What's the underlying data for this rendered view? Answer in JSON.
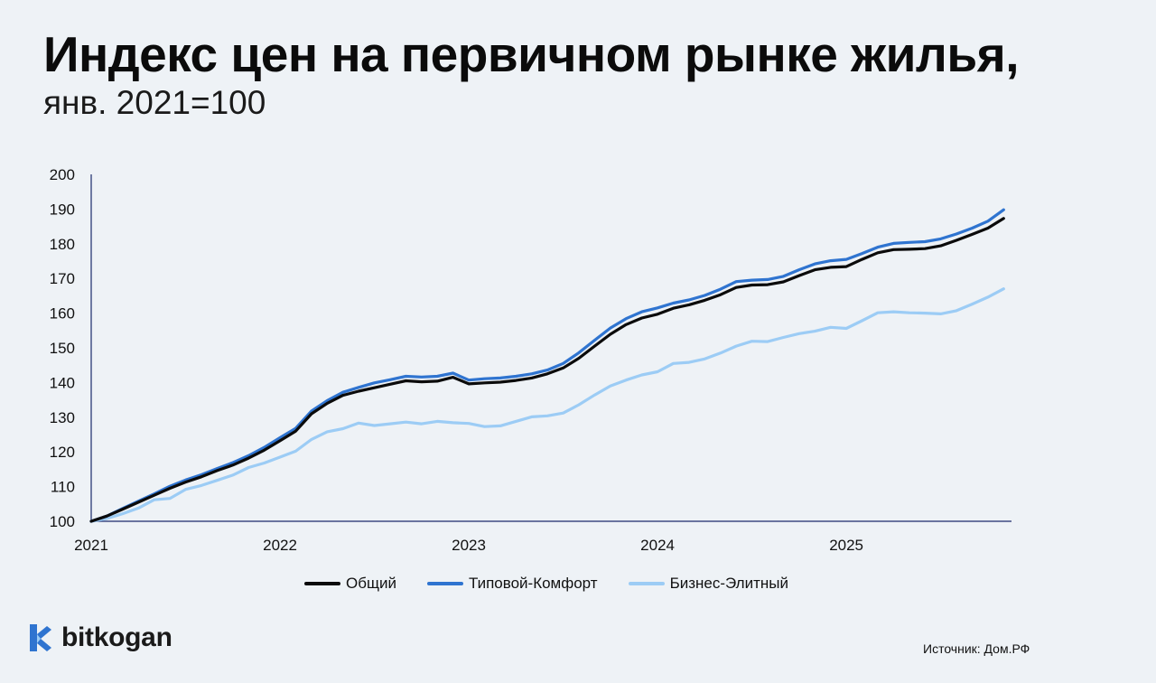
{
  "header": {
    "title": "Индекс цен на первичном рынке жилья,",
    "subtitle": "янв. 2021=100"
  },
  "legend": {
    "items": [
      {
        "label": "Общий",
        "color": "#0b0b0b"
      },
      {
        "label": "Типовой-Комфорт",
        "color": "#2f74d0"
      },
      {
        "label": "Бизнес-Элитный",
        "color": "#9cccf5"
      }
    ]
  },
  "footer": {
    "brand": "bitkogan",
    "source": "Источник: Дом.РФ"
  },
  "chart_data": {
    "type": "line",
    "title": "Индекс цен на первичном рынке жилья, янв. 2021=100",
    "xlabel": "",
    "ylabel": "",
    "ylim": [
      100,
      200
    ],
    "yticks": [
      100,
      110,
      120,
      130,
      140,
      150,
      160,
      170,
      180,
      190,
      200
    ],
    "xlim": [
      2021.0,
      2025.875
    ],
    "xticks": [
      "2021",
      "2022",
      "2023",
      "2024",
      "2025"
    ],
    "x_start": "2021-01",
    "x_step_months": 1,
    "series": [
      {
        "name": "Общий",
        "color": "#0b0b0b",
        "values": [
          100,
          101.5,
          103.5,
          105.5,
          107.5,
          109.5,
          111.3,
          112.8,
          114.6,
          116.2,
          118.2,
          120.5,
          123.2,
          126,
          131,
          134,
          136.3,
          137.5,
          138.5,
          139.5,
          140.5,
          140.2,
          140.4,
          141.5,
          139.6,
          139.9,
          140.1,
          140.6,
          141.3,
          142.5,
          144.2,
          147,
          150.5,
          153.9,
          156.7,
          158.6,
          159.7,
          161.4,
          162.4,
          163.7,
          165.3,
          167.4,
          168.1,
          168.2,
          169,
          170.8,
          172.5,
          173.2,
          173.4,
          175.5,
          177.4,
          178.3,
          178.4,
          178.6,
          179.4,
          181,
          182.7,
          184.5,
          187.3
        ]
      },
      {
        "name": "Типовой-Комфорт",
        "color": "#2f74d0",
        "values": [
          100,
          101.5,
          103.7,
          105.8,
          107.9,
          110.1,
          111.9,
          113.4,
          115.2,
          116.9,
          118.9,
          121.3,
          124.1,
          126.8,
          131.8,
          134.8,
          137.2,
          138.6,
          139.9,
          140.8,
          141.8,
          141.6,
          141.8,
          142.7,
          140.7,
          141.1,
          141.3,
          141.8,
          142.5,
          143.6,
          145.5,
          148.6,
          152.2,
          155.7,
          158.4,
          160.4,
          161.5,
          162.9,
          163.8,
          165.1,
          166.9,
          169.1,
          169.5,
          169.7,
          170.6,
          172.5,
          174.2,
          175.1,
          175.5,
          177.2,
          179,
          180.1,
          180.4,
          180.6,
          181.4,
          182.8,
          184.5,
          186.5,
          189.8
        ]
      },
      {
        "name": "Бизнес-Элитный",
        "color": "#9cccf5",
        "values": [
          100,
          100.8,
          102.2,
          103.8,
          106.2,
          106.6,
          109.2,
          110.3,
          111.8,
          113.3,
          115.5,
          116.8,
          118.5,
          120.2,
          123.6,
          125.8,
          126.7,
          128.3,
          127.6,
          128.1,
          128.6,
          128.1,
          128.8,
          128.4,
          128.2,
          127.3,
          127.5,
          128.8,
          130.1,
          130.4,
          131.2,
          133.6,
          136.4,
          139,
          140.7,
          142.2,
          143.1,
          145.5,
          145.8,
          146.8,
          148.5,
          150.5,
          151.9,
          151.8,
          153,
          154.1,
          154.8,
          155.9,
          155.6,
          157.8,
          160.1,
          160.4,
          160.1,
          160,
          159.8,
          160.7,
          162.6,
          164.6,
          167
        ]
      }
    ]
  }
}
